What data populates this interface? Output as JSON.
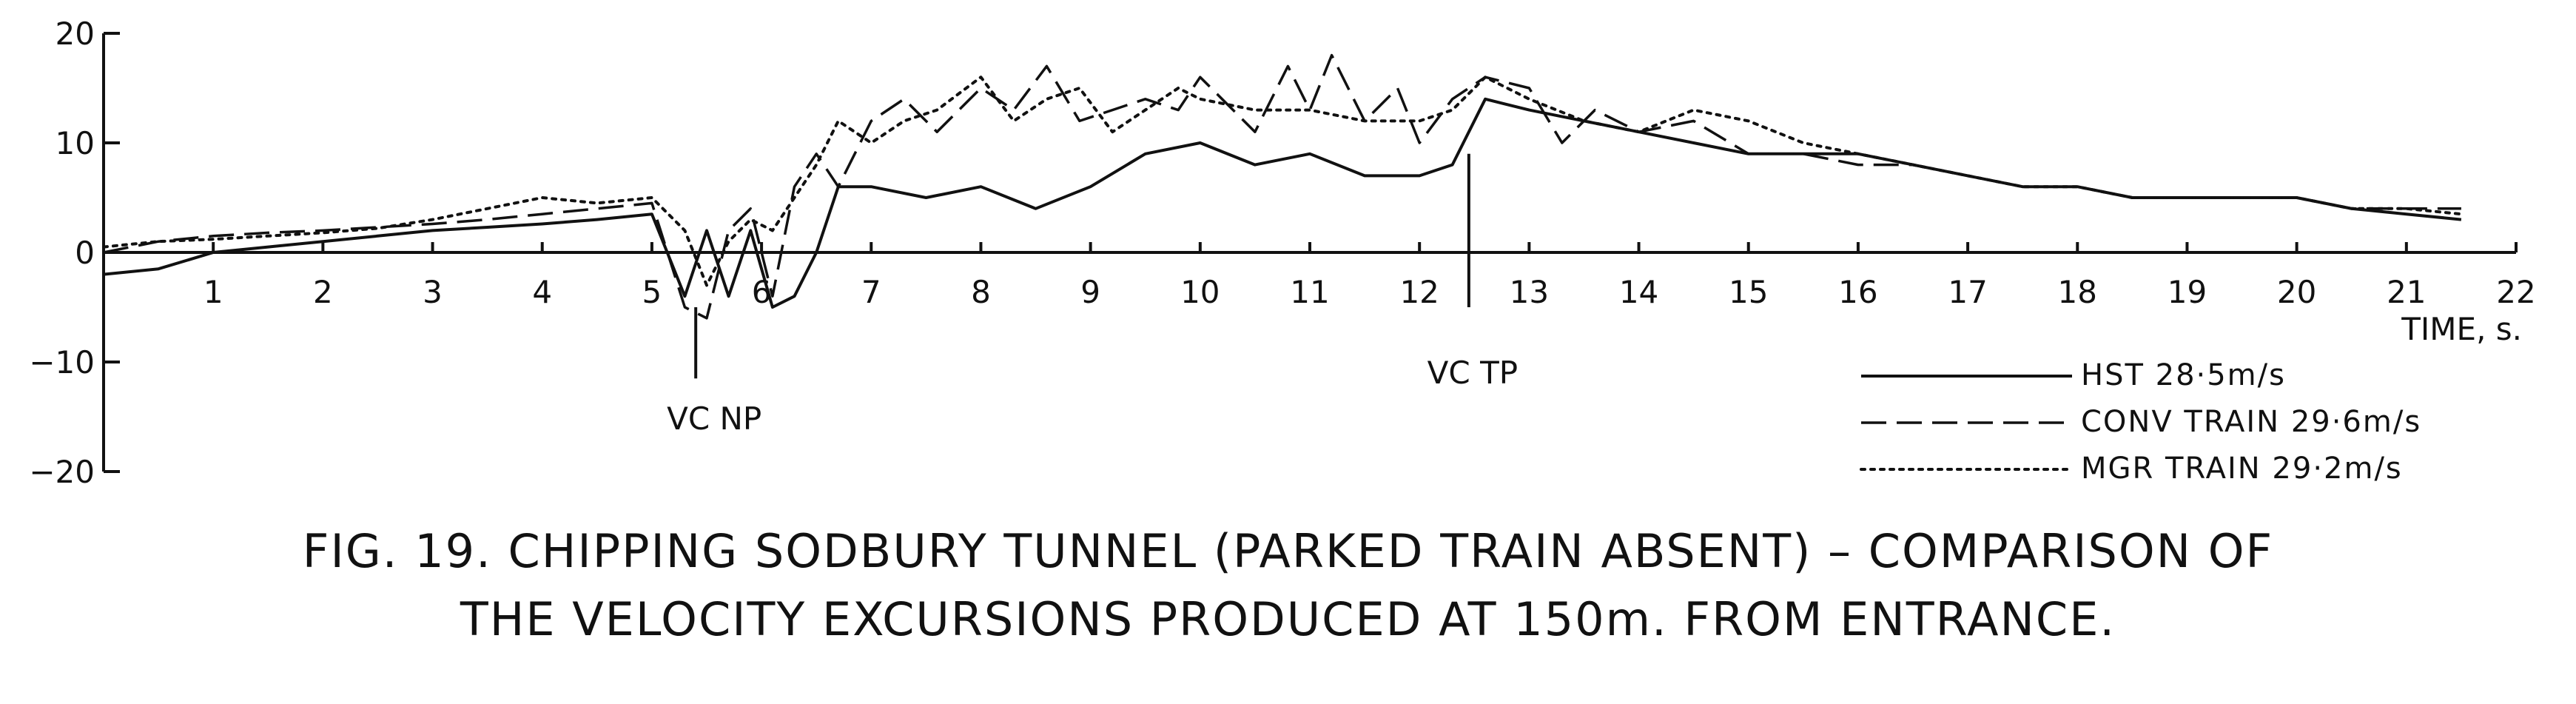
{
  "chart_data": {
    "type": "line",
    "title": "FIG. 19. CHIPPING SODBURY TUNNEL (PARKED TRAIN ABSENT) – COMPARISON OF THE VELOCITY EXCURSIONS PRODUCED AT 150m. FROM ENTRANCE.",
    "xlabel": "TIME, s.",
    "ylabel": "",
    "xlim": [
      0,
      22
    ],
    "ylim": [
      -20,
      20
    ],
    "x_ticks": [
      1,
      2,
      3,
      4,
      5,
      6,
      7,
      8,
      9,
      10,
      11,
      12,
      13,
      14,
      15,
      16,
      17,
      18,
      19,
      20,
      21,
      22
    ],
    "y_ticks": [
      20,
      10,
      0,
      -10,
      -20
    ],
    "y_tick_labels": [
      "20",
      "10",
      "0",
      "−10",
      "−20"
    ],
    "grid": false,
    "legend_position": "bottom-right",
    "annotations": [
      {
        "text": "VC NP",
        "x": 5.4
      },
      {
        "text": "VC TP",
        "x": 12.45
      }
    ],
    "series": [
      {
        "name": "HST 28·5m/s",
        "style": "solid",
        "x": [
          0,
          0.5,
          1,
          1.5,
          2,
          2.5,
          3,
          3.5,
          4,
          4.5,
          5,
          5.3,
          5.5,
          5.7,
          5.9,
          6.1,
          6.3,
          6.5,
          6.7,
          7,
          7.5,
          8,
          8.5,
          9,
          9.5,
          10,
          10.5,
          11,
          11.5,
          12,
          12.3,
          12.6,
          13,
          13.5,
          14,
          14.5,
          15,
          15.5,
          16,
          16.5,
          17,
          17.5,
          18,
          18.5,
          19,
          19.5,
          20,
          20.5,
          21,
          21.5
        ],
        "y": [
          -2,
          -1.5,
          0,
          0.5,
          1,
          1.5,
          2,
          2.3,
          2.6,
          3,
          3.5,
          -4,
          2,
          -4,
          2,
          -5,
          -4,
          0,
          6,
          6,
          5,
          6,
          4,
          6,
          9,
          10,
          8,
          9,
          7,
          7,
          8,
          14,
          13,
          12,
          11,
          10,
          9,
          9,
          9,
          8,
          7,
          6,
          6,
          5,
          5,
          5,
          5,
          4,
          3.5,
          3
        ]
      },
      {
        "name": "CONV TRAIN 29·6m/s",
        "style": "dashed",
        "x": [
          0,
          0.5,
          1,
          1.5,
          2,
          2.5,
          3,
          3.5,
          4,
          4.5,
          5,
          5.3,
          5.5,
          5.7,
          5.9,
          6.1,
          6.3,
          6.5,
          6.7,
          7,
          7.3,
          7.6,
          8,
          8.3,
          8.6,
          8.9,
          9.2,
          9.5,
          9.8,
          10,
          10.5,
          10.8,
          11,
          11.2,
          11.5,
          11.8,
          12,
          12.3,
          12.6,
          13,
          13.3,
          13.6,
          14,
          14.5,
          15,
          15.5,
          16,
          16.5,
          17,
          17.5,
          18,
          18.5,
          19,
          19.5,
          20,
          20.5,
          21,
          21.5
        ],
        "y": [
          0,
          1,
          1.5,
          1.8,
          2,
          2.3,
          2.6,
          3,
          3.5,
          4,
          4.5,
          -5,
          -6,
          2,
          4,
          -4,
          6,
          9,
          6,
          12,
          14,
          11,
          15,
          13,
          17,
          12,
          13,
          14,
          13,
          16,
          11,
          17,
          13,
          18,
          12,
          15,
          10,
          14,
          16,
          15,
          10,
          13,
          11,
          12,
          9,
          9,
          8,
          8,
          7,
          6,
          6,
          5,
          5,
          5,
          5,
          4,
          4,
          4
        ]
      },
      {
        "name": "MGR TRAIN 29·2m/s",
        "style": "dotted",
        "x": [
          0,
          0.5,
          1,
          1.5,
          2,
          2.5,
          3,
          3.5,
          4,
          4.5,
          5,
          5.3,
          5.5,
          5.7,
          5.9,
          6.1,
          6.3,
          6.5,
          6.7,
          7,
          7.3,
          7.6,
          8,
          8.3,
          8.6,
          8.9,
          9.2,
          9.5,
          9.8,
          10,
          10.5,
          11,
          11.5,
          12,
          12.3,
          12.6,
          13,
          13.5,
          14,
          14.5,
          15,
          15.5,
          16,
          16.5,
          17,
          17.5,
          18,
          18.5,
          19,
          19.5,
          20,
          20.5,
          21,
          21.5
        ],
        "y": [
          0.5,
          1,
          1.2,
          1.5,
          1.8,
          2.2,
          3,
          4,
          5,
          4.5,
          5,
          2,
          -3,
          1,
          3,
          2,
          5,
          8,
          12,
          10,
          12,
          13,
          16,
          12,
          14,
          15,
          11,
          13,
          15,
          14,
          13,
          13,
          12,
          12,
          13,
          16,
          14,
          12,
          11,
          13,
          12,
          10,
          9,
          8,
          7,
          6,
          6,
          5,
          5,
          5,
          5,
          4,
          4,
          3.5
        ]
      }
    ]
  },
  "legend": {
    "items": [
      {
        "label": "HST 28·5m/s",
        "style": "solid"
      },
      {
        "label": "CONV TRAIN 29·6m/s",
        "style": "dashed"
      },
      {
        "label": "MGR TRAIN 29·2m/s",
        "style": "dotted"
      }
    ]
  },
  "caption": {
    "line1": "FIG. 19. CHIPPING SODBURY TUNNEL (PARKED TRAIN ABSENT) – COMPARISON OF",
    "line2": "THE VELOCITY EXCURSIONS PRODUCED AT 150m. FROM ENTRANCE."
  }
}
